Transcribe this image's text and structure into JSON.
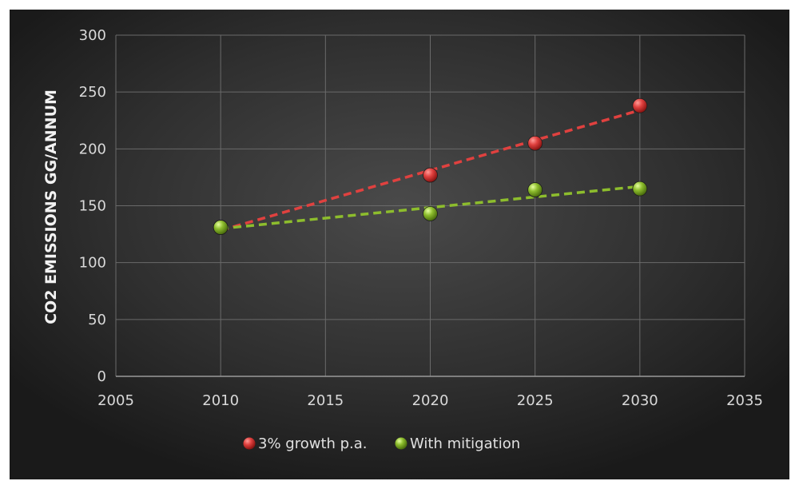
{
  "chart_data": {
    "type": "scatter",
    "title": "",
    "xlabel": "",
    "ylabel": "CO2 EMISSIONS GG/ANNUM",
    "xlim": [
      2005,
      2035
    ],
    "ylim": [
      0,
      300
    ],
    "xticks": [
      2005,
      2010,
      2015,
      2020,
      2025,
      2030,
      2035
    ],
    "yticks": [
      0,
      50,
      100,
      150,
      200,
      250,
      300
    ],
    "grid": true,
    "legend_position": "bottom",
    "series": [
      {
        "name": "3% growth p.a.",
        "color": "#e0413f",
        "trendline": "linear",
        "trendline_style": "dashed",
        "points": [
          {
            "x": 2010,
            "y": 131
          },
          {
            "x": 2020,
            "y": 177
          },
          {
            "x": 2025,
            "y": 205
          },
          {
            "x": 2030,
            "y": 238
          }
        ]
      },
      {
        "name": "With mitigation",
        "color": "#8dbd2d",
        "trendline": "linear",
        "trendline_style": "dashed",
        "points": [
          {
            "x": 2010,
            "y": 131
          },
          {
            "x": 2020,
            "y": 143
          },
          {
            "x": 2025,
            "y": 164
          },
          {
            "x": 2030,
            "y": 165
          }
        ]
      }
    ]
  }
}
